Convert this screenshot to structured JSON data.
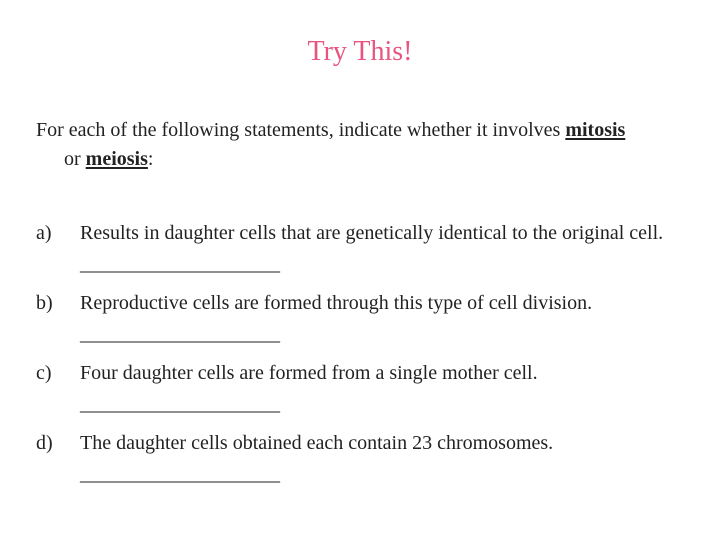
{
  "title": "Try This!",
  "title_color": "#e75480",
  "intro": {
    "pre": "For each of the following statements, indicate whether it involves ",
    "kw1": "mitosis",
    "mid": "or ",
    "kw2": "meiosis",
    "post": ":"
  },
  "blank": "____________________",
  "questions": {
    "a": {
      "marker": "a)",
      "text_pre": "Results in daughter cells that are genetically identical to the original cell. "
    },
    "b": {
      "marker": "b)",
      "text_pre": "Reproductive cells are formed through this type of cell division."
    },
    "c": {
      "marker": "c)",
      "text_pre": "Four daughter cells are formed from a single mother cell."
    },
    "d": {
      "marker": "d)",
      "text_pre": "The daughter cells obtained each contain 23 chromosomes."
    }
  }
}
